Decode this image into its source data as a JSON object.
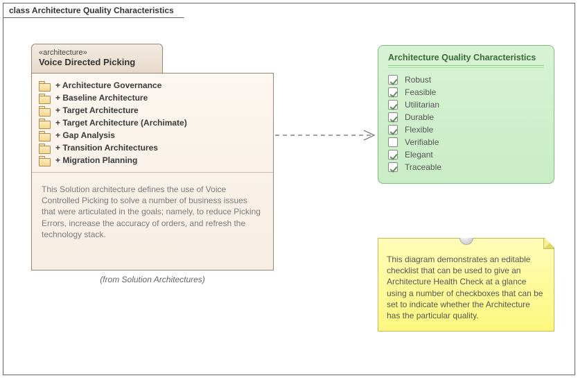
{
  "frame": {
    "title": "class Architecture Quality Characteristics"
  },
  "arch": {
    "stereotype": "«architecture»",
    "name": "Voice Directed Picking",
    "items": [
      "+ Architecture Governance",
      "+ Baseline Architecture",
      "+ Target Architecture",
      "+ Target Architecture (Archimate)",
      "+ Gap Analysis",
      "+ Transition Architectures",
      "+ Migration Planning"
    ],
    "description": "This Solution architecture defines the use of Voice Controlled Picking to solve a number of business issues that were articulated in the goals; namely, to reduce Picking Errors, increase the accuracy of orders, and refresh the technology stack.",
    "from": "(from Solution Architectures)"
  },
  "checklist": {
    "title": "Architecture Quality Characteristics",
    "items": [
      {
        "label": "Robust",
        "checked": true
      },
      {
        "label": "Feasible",
        "checked": true
      },
      {
        "label": "Utilitarian",
        "checked": true
      },
      {
        "label": "Durable",
        "checked": true
      },
      {
        "label": "Flexible",
        "checked": true
      },
      {
        "label": "Verifiable",
        "checked": false
      },
      {
        "label": "Elegant",
        "checked": true
      },
      {
        "label": "Traceable",
        "checked": true
      }
    ]
  },
  "note": {
    "text": "This diagram demonstrates an editable checklist that can be used to give an Architecture Health Check at a glance using a number of checkboxes that can be set to indicate whether the Architecture has the particular quality."
  },
  "style": {
    "arch_border": "#9a8573",
    "arch_bg_top": "#fdf7f1",
    "arch_bg_bot": "#f6ede3",
    "checklist_border": "#7bbf7b",
    "checklist_bg_top": "#d7f3d4",
    "checklist_bg_bot": "#c9ecc5",
    "note_border": "#c8b85a",
    "note_bg_top": "#fffcb8",
    "note_bg_bot": "#fef87f",
    "arrow_color": "#6a6a6a"
  }
}
